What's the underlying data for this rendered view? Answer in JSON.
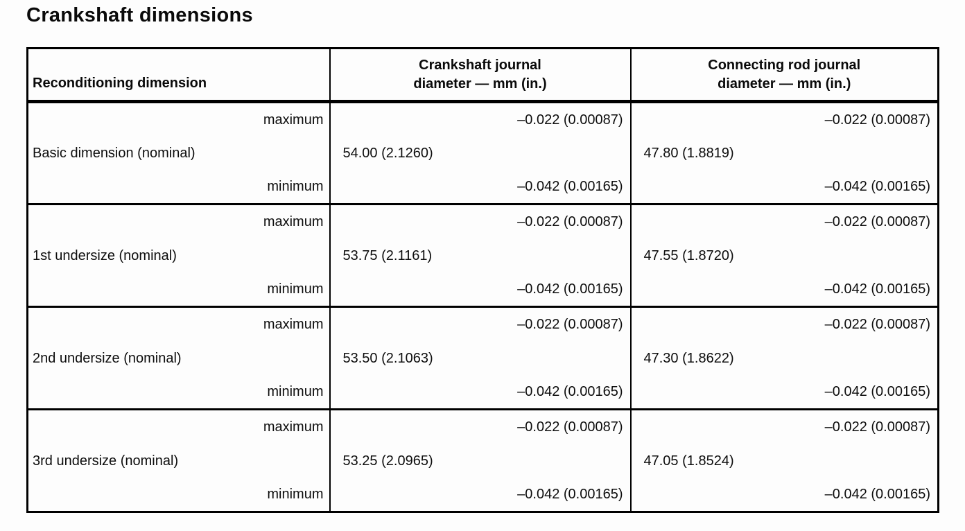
{
  "title": "Crankshaft dimensions",
  "table": {
    "headers": {
      "reconditioning": "Reconditioning dimension",
      "crankshaft_line1": "Crankshaft journal",
      "crankshaft_line2": "diameter — mm (in.)",
      "rod_line1": "Connecting rod journal",
      "rod_line2": "diameter — mm (in.)"
    },
    "sublabels": {
      "max": "maximum",
      "min": "minimum"
    },
    "groups": [
      {
        "label": "Basic dimension (nominal)",
        "crank": {
          "max": "–0.022 (0.00087)",
          "nominal": "54.00 (2.1260)",
          "min": "–0.042 (0.00165)"
        },
        "rod": {
          "max": "–0.022 (0.00087)",
          "nominal": "47.80 (1.8819)",
          "min": "–0.042 (0.00165)"
        }
      },
      {
        "label": "1st undersize (nominal)",
        "crank": {
          "max": "–0.022 (0.00087)",
          "nominal": "53.75 (2.1161)",
          "min": "–0.042 (0.00165)"
        },
        "rod": {
          "max": "–0.022 (0.00087)",
          "nominal": "47.55 (1.8720)",
          "min": "–0.042 (0.00165)"
        }
      },
      {
        "label": "2nd undersize (nominal)",
        "crank": {
          "max": "–0.022 (0.00087)",
          "nominal": "53.50 (2.1063)",
          "min": "–0.042 (0.00165)"
        },
        "rod": {
          "max": "–0.022 (0.00087)",
          "nominal": "47.30 (1.8622)",
          "min": "–0.042 (0.00165)"
        }
      },
      {
        "label": "3rd undersize (nominal)",
        "crank": {
          "max": "–0.022 (0.00087)",
          "nominal": "53.25 (2.0965)",
          "min": "–0.042 (0.00165)"
        },
        "rod": {
          "max": "–0.022 (0.00087)",
          "nominal": "47.05 (1.8524)",
          "min": "–0.042 (0.00165)"
        }
      }
    ]
  }
}
